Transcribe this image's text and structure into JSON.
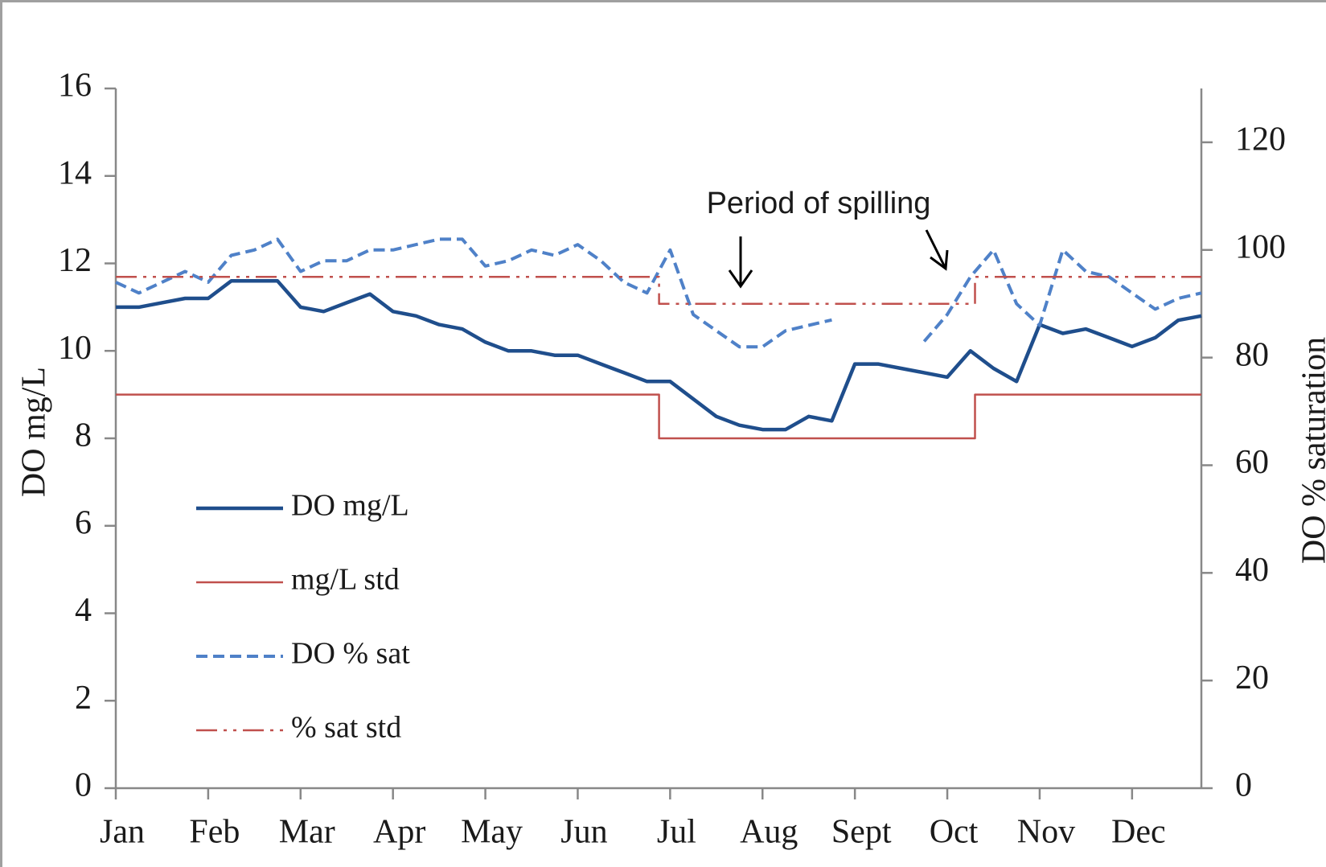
{
  "chart_data": {
    "type": "line",
    "annotation": "Period of spilling",
    "ylabel": "DO mg/L",
    "y2label": "DO % saturation",
    "xlim": [
      0,
      11.75
    ],
    "xticks": [
      {
        "value": 0,
        "label": "Jan"
      },
      {
        "value": 1,
        "label": "Feb"
      },
      {
        "value": 2,
        "label": "Mar"
      },
      {
        "value": 3,
        "label": "Apr"
      },
      {
        "value": 4,
        "label": "May"
      },
      {
        "value": 5,
        "label": "Jun"
      },
      {
        "value": 6,
        "label": "Jul"
      },
      {
        "value": 7,
        "label": "Aug"
      },
      {
        "value": 8,
        "label": "Sept"
      },
      {
        "value": 9,
        "label": "Oct"
      },
      {
        "value": 10,
        "label": "Nov"
      },
      {
        "value": 11,
        "label": "Dec"
      }
    ],
    "ylim": [
      0,
      16
    ],
    "yticks": [
      0,
      2,
      4,
      6,
      8,
      10,
      12,
      14,
      16
    ],
    "y2lim": [
      0,
      130
    ],
    "y2ticks": [
      0,
      20,
      40,
      60,
      80,
      100,
      120
    ],
    "x": [
      0,
      0.25,
      0.5,
      0.75,
      1,
      1.25,
      1.5,
      1.75,
      2,
      2.25,
      2.5,
      2.75,
      3,
      3.25,
      3.5,
      3.75,
      4,
      4.25,
      4.5,
      4.75,
      5,
      5.25,
      5.5,
      5.75,
      6,
      6.25,
      6.5,
      6.75,
      7,
      7.25,
      7.5,
      7.75,
      8,
      8.25,
      8.5,
      8.75,
      9,
      9.25,
      9.5,
      9.75,
      10,
      10.25,
      10.5,
      10.75,
      11,
      11.25,
      11.5,
      11.75
    ],
    "legend": "lower left",
    "series": [
      {
        "name": "DO mg/L",
        "color": "#1f4e8c",
        "linestyle": "solid",
        "width": 4.5,
        "values": [
          11.0,
          11.0,
          11.1,
          11.2,
          11.2,
          11.6,
          11.6,
          11.6,
          11.0,
          10.9,
          11.1,
          11.3,
          10.9,
          10.8,
          10.6,
          10.5,
          10.2,
          10.0,
          10.0,
          9.9,
          9.9,
          9.7,
          9.5,
          9.3,
          9.3,
          8.9,
          8.5,
          8.3,
          8.2,
          8.2,
          8.5,
          8.4,
          9.7,
          9.7,
          9.6,
          9.5,
          9.4,
          10.0,
          9.6,
          9.3,
          10.6,
          10.4,
          10.5,
          10.3,
          10.1,
          10.3,
          10.7,
          10.8
        ]
      },
      {
        "name": "mg/L std",
        "color": "#c0504d",
        "linestyle": "solid",
        "width": 2.5,
        "x": [
          0,
          5.88,
          5.88,
          9.3,
          9.3,
          11.75
        ],
        "values": [
          9,
          9,
          8,
          8,
          9,
          9
        ]
      },
      {
        "name": "DO % sat",
        "color": "#4f81c8",
        "linestyle": "dashed",
        "width": 4,
        "axis": "y2",
        "values": [
          94,
          92,
          94,
          96,
          94,
          99,
          100,
          102,
          96,
          98,
          98,
          100,
          100,
          101,
          102,
          102,
          97,
          98,
          100,
          99,
          101,
          98,
          94,
          92,
          100,
          88,
          85,
          82,
          82,
          85,
          86,
          87,
          null,
          null,
          null,
          83,
          88,
          95,
          100,
          90,
          86,
          100,
          96,
          95,
          92,
          89,
          91,
          92
        ]
      },
      {
        "name": "% sat std",
        "color": "#c0504d",
        "linestyle": "dashdot",
        "width": 2.5,
        "axis": "y2",
        "x": [
          0,
          5.88,
          5.88,
          9.3,
          9.3,
          11.75
        ],
        "values": [
          95,
          95,
          90,
          90,
          95,
          95
        ]
      }
    ]
  }
}
